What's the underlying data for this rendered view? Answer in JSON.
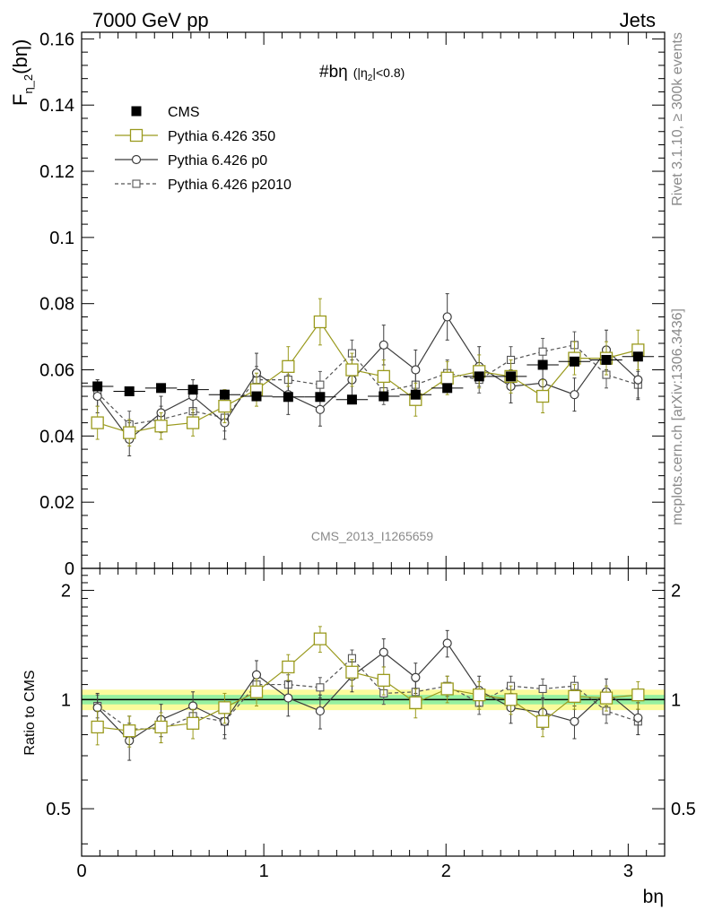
{
  "header": {
    "left": "7000 GeV pp",
    "right": "Jets",
    "plot_label_main": "#bη",
    "plot_label_cut": "(|η",
    "plot_label_cut_sub": "2",
    "plot_label_cut_end": "|<0.8)",
    "analysis_id": "CMS_2013_I1265659",
    "side_label_top": "Rivet 3.1.10, ≥ 300k events",
    "side_label_bottom": "mcplots.cern.ch [arXiv:1306.3436]"
  },
  "legend": [
    {
      "label": "CMS",
      "color": "#000000",
      "style": "filled-square"
    },
    {
      "label": "Pythia 6.426 350",
      "color": "#9a9a1e",
      "style": "open-square-line"
    },
    {
      "label": "Pythia 6.426 p0",
      "color": "#3c3c3c",
      "style": "open-circle-line"
    },
    {
      "label": "Pythia 6.426 p2010",
      "color": "#555555",
      "style": "open-square-dashed"
    }
  ],
  "chart_data": [
    {
      "type": "scatter",
      "panel": "main",
      "ylabel": "F",
      "ylabel_sub": "η_2",
      "ylabel_end": "(bη)",
      "xlabel": "bη",
      "xlim": [
        0,
        3.2
      ],
      "ylim": [
        0,
        0.162
      ],
      "yticks": [
        "0",
        "0.02",
        "0.04",
        "0.06",
        "0.08",
        "0.1",
        "0.12",
        "0.14",
        "0.16"
      ],
      "x": [
        0.087,
        0.262,
        0.436,
        0.611,
        0.785,
        0.96,
        1.134,
        1.309,
        1.484,
        1.658,
        1.833,
        2.007,
        2.182,
        2.356,
        2.531,
        2.705,
        2.88,
        3.054
      ],
      "series": [
        {
          "name": "CMS",
          "values": [
            0.055,
            0.0535,
            0.0545,
            0.054,
            0.0525,
            0.052,
            0.0518,
            0.0518,
            0.051,
            0.052,
            0.0525,
            0.0545,
            0.058,
            0.058,
            0.0615,
            0.0625,
            0.063,
            0.064
          ],
          "errors": [
            0.001,
            0.001,
            0.001,
            0.001,
            0.001,
            0.001,
            0.001,
            0.001,
            0.001,
            0.001,
            0.001,
            0.001,
            0.001,
            0.001,
            0.001,
            0.001,
            0.001,
            0.001
          ]
        },
        {
          "name": "Pythia 6.426 350",
          "values": [
            0.044,
            0.041,
            0.043,
            0.044,
            0.049,
            0.054,
            0.061,
            0.0745,
            0.06,
            0.058,
            0.051,
            0.0575,
            0.0595,
            0.058,
            0.052,
            0.0635,
            0.0635,
            0.066
          ],
          "errors": [
            0.005,
            0.004,
            0.004,
            0.004,
            0.005,
            0.005,
            0.006,
            0.007,
            0.005,
            0.005,
            0.005,
            0.005,
            0.005,
            0.005,
            0.005,
            0.005,
            0.005,
            0.006
          ]
        },
        {
          "name": "Pythia 6.426 p0",
          "values": [
            0.052,
            0.039,
            0.047,
            0.052,
            0.044,
            0.059,
            0.0525,
            0.048,
            0.057,
            0.0675,
            0.06,
            0.076,
            0.061,
            0.055,
            0.056,
            0.0525,
            0.066,
            0.057
          ],
          "errors": [
            0.005,
            0.005,
            0.005,
            0.005,
            0.005,
            0.006,
            0.006,
            0.005,
            0.006,
            0.006,
            0.006,
            0.007,
            0.006,
            0.005,
            0.005,
            0.005,
            0.006,
            0.006
          ]
        },
        {
          "name": "Pythia 6.426 p2010",
          "values": [
            0.053,
            0.0435,
            0.045,
            0.0475,
            0.0455,
            0.057,
            0.057,
            0.0555,
            0.065,
            0.0535,
            0.0555,
            0.059,
            0.057,
            0.063,
            0.0655,
            0.0675,
            0.0585,
            0.0555
          ],
          "errors": [
            0.004,
            0.004,
            0.004,
            0.004,
            0.004,
            0.004,
            0.004,
            0.004,
            0.004,
            0.004,
            0.004,
            0.004,
            0.004,
            0.004,
            0.004,
            0.004,
            0.004,
            0.004
          ]
        }
      ]
    },
    {
      "type": "scatter",
      "panel": "ratio",
      "ylabel": "Ratio to CMS",
      "xlabel": "bη",
      "xlim": [
        0,
        3.2
      ],
      "ylim": [
        0.37,
        2.3
      ],
      "yticks": [
        "0.5",
        "1",
        "2"
      ],
      "xticks": [
        "0",
        "1",
        "2",
        "3"
      ],
      "band_inner": 0.03,
      "band_outer": 0.065,
      "series": [
        {
          "name": "Pythia 6.426 350",
          "values": [
            0.84,
            0.82,
            0.84,
            0.86,
            0.95,
            1.05,
            1.23,
            1.47,
            1.19,
            1.13,
            0.98,
            1.07,
            1.03,
            1.0,
            0.87,
            1.02,
            1.01,
            1.03
          ],
          "errors": [
            0.09,
            0.08,
            0.08,
            0.08,
            0.09,
            0.09,
            0.1,
            0.12,
            0.1,
            0.1,
            0.09,
            0.09,
            0.09,
            0.09,
            0.08,
            0.08,
            0.08,
            0.09
          ]
        },
        {
          "name": "Pythia 6.426 p0",
          "values": [
            0.95,
            0.77,
            0.88,
            0.96,
            0.87,
            1.17,
            1.01,
            0.93,
            1.16,
            1.35,
            1.15,
            1.43,
            1.06,
            0.95,
            0.92,
            0.87,
            1.05,
            0.89
          ],
          "errors": [
            0.09,
            0.09,
            0.09,
            0.09,
            0.09,
            0.11,
            0.11,
            0.1,
            0.11,
            0.12,
            0.11,
            0.12,
            0.1,
            0.09,
            0.09,
            0.09,
            0.09,
            0.09
          ]
        },
        {
          "name": "Pythia 6.426 p2010",
          "values": [
            0.96,
            0.83,
            0.83,
            0.9,
            0.87,
            1.1,
            1.1,
            1.08,
            1.3,
            1.04,
            1.05,
            1.09,
            0.98,
            1.09,
            1.07,
            1.09,
            0.93,
            0.87
          ],
          "errors": [
            0.07,
            0.07,
            0.07,
            0.07,
            0.07,
            0.07,
            0.07,
            0.07,
            0.07,
            0.07,
            0.07,
            0.07,
            0.07,
            0.07,
            0.07,
            0.07,
            0.07,
            0.07
          ]
        }
      ]
    }
  ]
}
